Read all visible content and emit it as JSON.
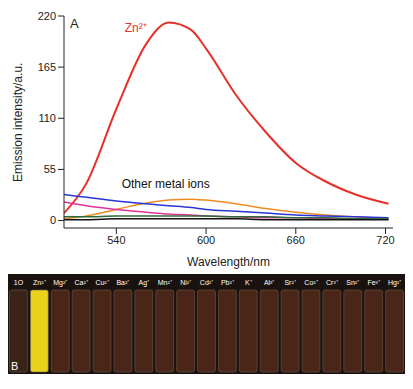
{
  "chart_data": {
    "type": "line",
    "title": "A",
    "x_label": "Wavelength/nm",
    "y_label": "Emission intensity/a.u.",
    "x": [
      505,
      520,
      540,
      560,
      575,
      590,
      600,
      620,
      640,
      660,
      680,
      700,
      722
    ],
    "series": [
      {
        "name": "Zn²⁺",
        "color": "#e8302a",
        "values": [
          8,
          40,
          120,
          190,
          213,
          205,
          185,
          135,
          95,
          62,
          42,
          28,
          18
        ]
      },
      {
        "color": "#f08a24",
        "values": [
          2,
          5,
          12,
          19,
          22,
          23,
          22,
          18,
          13,
          9,
          6,
          4,
          2
        ]
      },
      {
        "color": "#2a35d6",
        "values": [
          28,
          25,
          21,
          18,
          16,
          14,
          12,
          10,
          8,
          6,
          5,
          4,
          3
        ]
      },
      {
        "color": "#e0339a",
        "values": [
          20,
          16,
          12,
          9,
          7,
          6,
          5,
          4,
          3,
          3,
          2,
          2,
          2
        ]
      },
      {
        "color": "#2f6b3a",
        "values": [
          4,
          4,
          5,
          5,
          5,
          5,
          5,
          4,
          4,
          3,
          3,
          2,
          2
        ]
      },
      {
        "color": "#111111",
        "values": [
          1,
          1,
          2,
          2,
          2,
          2,
          2,
          2,
          1,
          1,
          1,
          1,
          1
        ]
      }
    ],
    "xlim": [
      505,
      725
    ],
    "xticks": [
      540,
      600,
      660,
      720
    ],
    "ylim": [
      -8,
      220
    ],
    "yticks": [
      0,
      55,
      110,
      165,
      220
    ],
    "grid": false,
    "annotations": [
      {
        "text": "Zn²⁺",
        "x": 553,
        "y": 207,
        "color": "#e8302a"
      },
      {
        "text": "Other metal ions",
        "x": 573,
        "y": 40,
        "color": "#111111"
      }
    ]
  },
  "panel_b": {
    "label": "B",
    "samples": [
      "1O",
      "Zn²⁺",
      "Mg²⁺",
      "Ca²⁺",
      "Cu²⁺",
      "Ba²⁺",
      "Ag⁺",
      "Mn²⁺",
      "Ni²⁺",
      "Cd²⁺",
      "Pb²⁺",
      "K⁺",
      "Al³⁺",
      "Sr²⁺",
      "Co²⁺",
      "Cr³⁺",
      "Sn²⁺",
      "Fe³⁺",
      "Hg²⁺"
    ],
    "colors": [
      "#3a2418",
      "#e8d21a",
      "#4a2618",
      "#4a2618",
      "#4a2618",
      "#4a2618",
      "#4a2618",
      "#4a2618",
      "#4a2618",
      "#4a2618",
      "#4a2618",
      "#4a2618",
      "#4a2618",
      "#4a2618",
      "#4a2618",
      "#4a2618",
      "#4a2618",
      "#4a2618",
      "#4a2618"
    ]
  }
}
